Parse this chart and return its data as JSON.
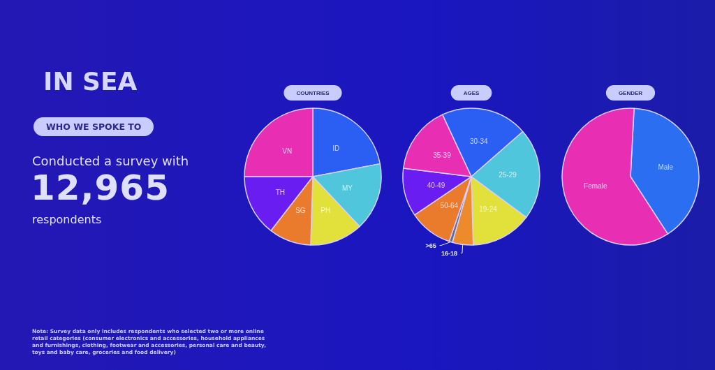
{
  "chart_data": [
    {
      "type": "other",
      "title": "IN SEA",
      "subtitle": "WHO WE SPOKE TO",
      "annotations": [
        "Conducted a survey with",
        "12,965",
        "respondents",
        "Note: Survey data only includes respondents who selected two or more online retail categories (consumer electronics and accessories, household appliances and furnishings, clothing, footwear and accessories, personal care and beauty, toys and baby care, groceries and food delivery)"
      ]
    },
    {
      "type": "pie",
      "title": "COUNTRIES",
      "categories": [
        "ID",
        "MY",
        "PH",
        "SG",
        "TH",
        "VN"
      ],
      "values": [
        22,
        16,
        12.5,
        10,
        14.5,
        25
      ],
      "colors": [
        "#2b5ef2",
        "#4fc6dc",
        "#e2e03a",
        "#ea7a2c",
        "#6a1df0",
        "#e82fb4"
      ]
    },
    {
      "type": "pie",
      "title": "AGES",
      "categories": [
        "30-34",
        "25-29",
        "19-24",
        "16-18",
        ">65",
        "50-64",
        "40-49",
        "35-39"
      ],
      "values": [
        20.5,
        21.6,
        14.4,
        4.9,
        0.8,
        10.3,
        11.4,
        16.1
      ],
      "colors": [
        "#2b5ef2",
        "#4fc6dc",
        "#e2e03a",
        "#ec8a2c",
        "#6b6b86",
        "#ea7a2c",
        "#6a1df0",
        "#e82fb4"
      ]
    },
    {
      "type": "pie",
      "title": "GENDER",
      "categories": [
        "Male",
        "Female"
      ],
      "values": [
        40,
        60
      ],
      "colors": [
        "#2b6ef2",
        "#e82fb4"
      ]
    }
  ]
}
